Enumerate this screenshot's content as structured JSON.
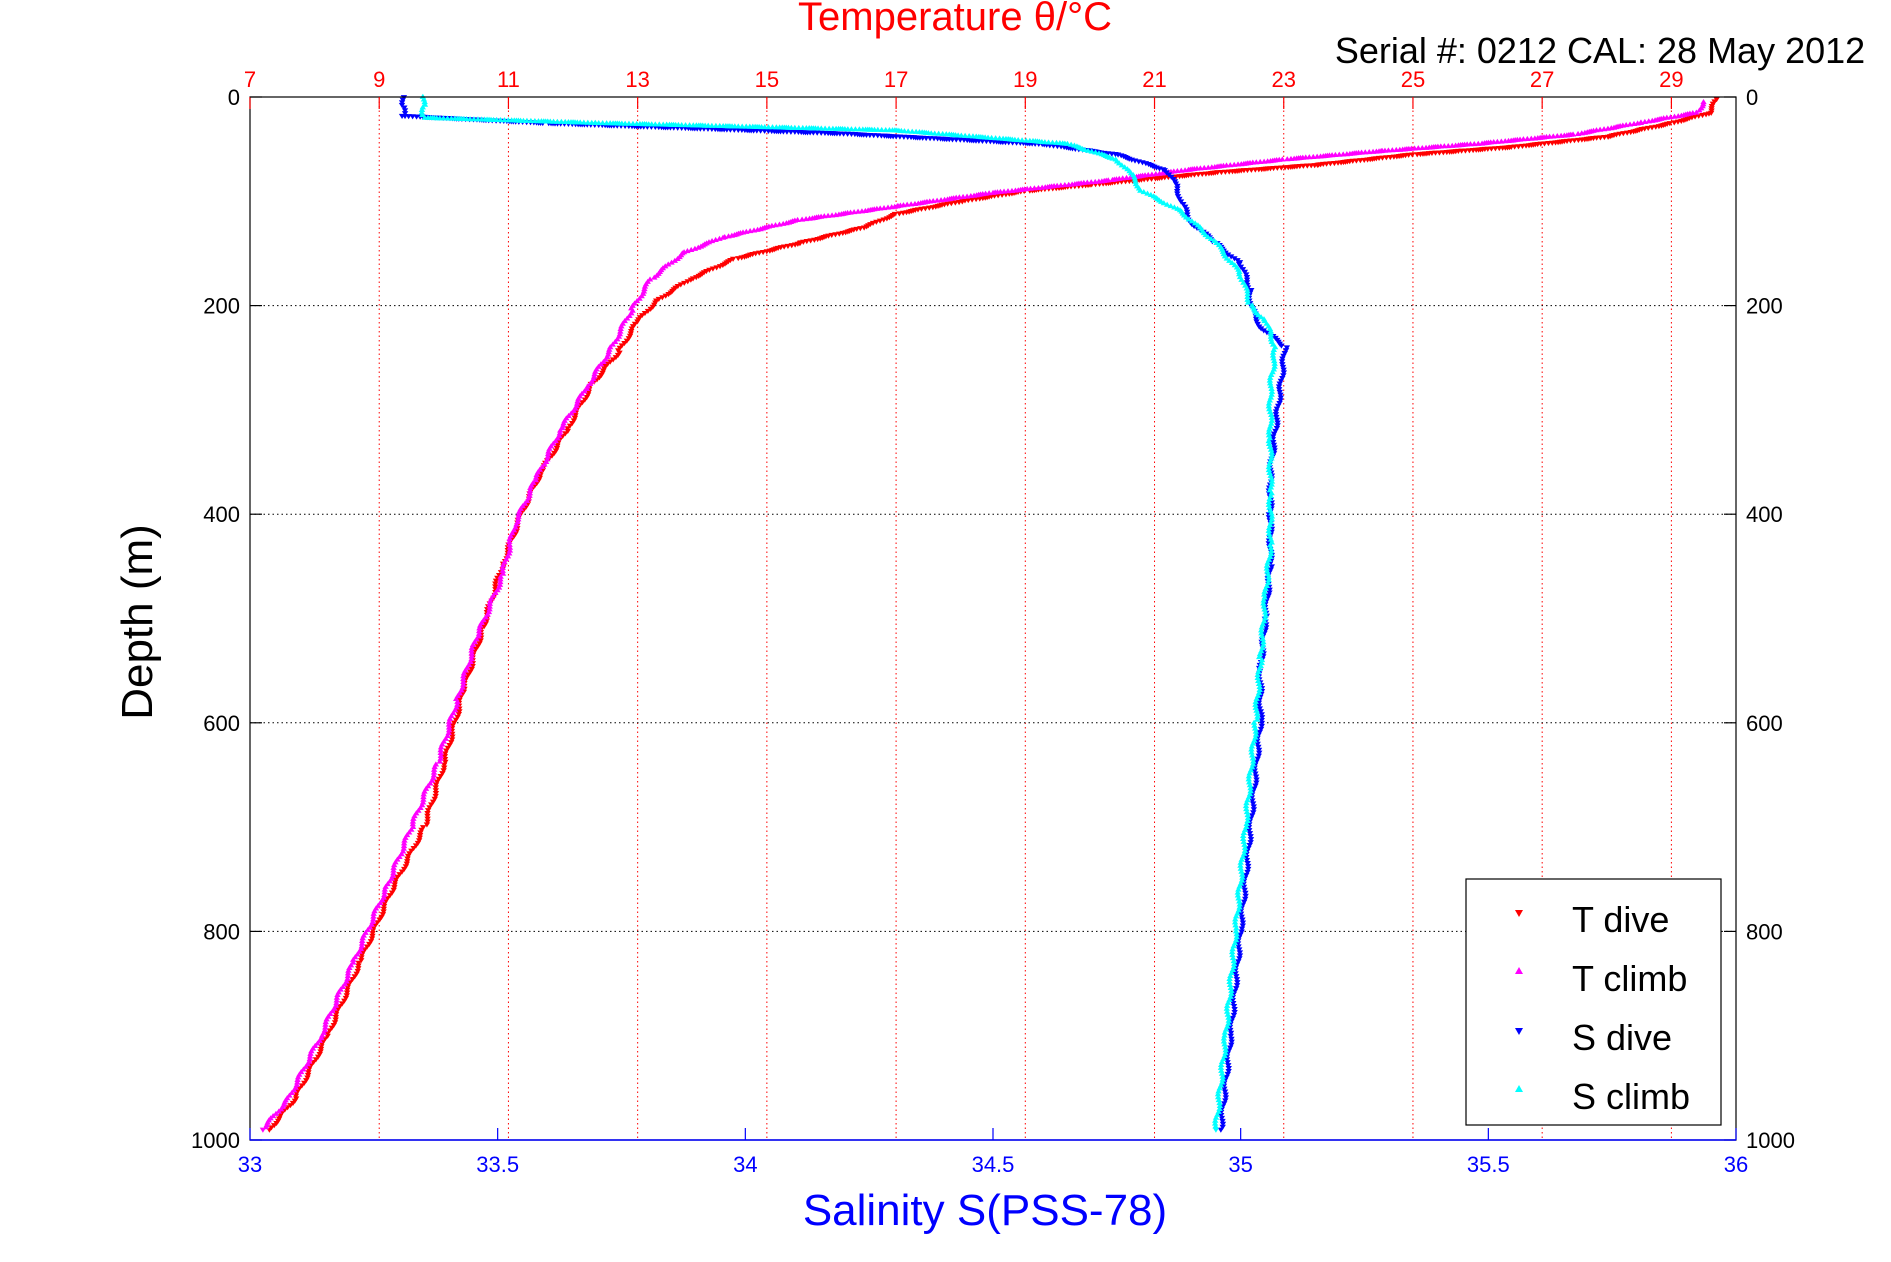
{
  "chart_data": {
    "type": "scatter",
    "title": "Temperature θ/°C",
    "subtitle": "Serial #: 0212  CAL: 28 May 2012",
    "xlabel": "Salinity S(PSS-78)",
    "ylabel": "Depth (m)",
    "colors": {
      "temp_axis": "#ff0000",
      "sal_axis": "#0000ff",
      "t_dive": "#ff0000",
      "t_climb": "#ff00ff",
      "s_dive": "#0000ff",
      "s_climb": "#00ffff"
    },
    "x_temperature": {
      "range": [
        7,
        30
      ],
      "ticks": [
        7,
        9,
        11,
        13,
        15,
        17,
        19,
        21,
        23,
        25,
        27,
        29
      ],
      "tick_labels": [
        "7",
        "9",
        "11",
        "13",
        "15",
        "17",
        "19",
        "21",
        "23",
        "25",
        "27",
        "29"
      ]
    },
    "x_salinity": {
      "range": [
        33,
        36
      ],
      "ticks": [
        33,
        33.5,
        34,
        34.5,
        35,
        35.5,
        36
      ],
      "tick_labels": [
        "33",
        "33.5",
        "34",
        "34.5",
        "35",
        "35.5",
        "36"
      ]
    },
    "y_depth": {
      "range": [
        0,
        1000
      ],
      "reversed": true,
      "ticks": [
        0,
        200,
        400,
        600,
        800,
        1000
      ],
      "left_tick_labels": [
        "0",
        "200",
        "400",
        "600",
        "800",
        "1000"
      ],
      "right_tick_labels": [
        "0",
        "200",
        "400",
        "600",
        "800",
        "1000"
      ]
    },
    "grid": true,
    "legend": {
      "position": "bottom-right",
      "entries": [
        "T dive",
        "T climb",
        "S dive",
        "S climb"
      ]
    },
    "series": [
      {
        "name": "T dive",
        "axis": "temperature",
        "marker": "triangle-down",
        "points": [
          [
            29.7,
            2
          ],
          [
            29.6,
            15
          ],
          [
            29.0,
            25
          ],
          [
            28.0,
            38
          ],
          [
            26.5,
            48
          ],
          [
            25.0,
            55
          ],
          [
            23.5,
            65
          ],
          [
            22.0,
            72
          ],
          [
            21.0,
            78
          ],
          [
            20.0,
            84
          ],
          [
            19.0,
            90
          ],
          [
            18.0,
            100
          ],
          [
            17.0,
            112
          ],
          [
            16.5,
            125
          ],
          [
            15.5,
            140
          ],
          [
            14.5,
            155
          ],
          [
            13.8,
            175
          ],
          [
            13.3,
            195
          ],
          [
            13.0,
            215
          ],
          [
            12.7,
            245
          ],
          [
            12.3,
            275
          ],
          [
            11.9,
            320
          ],
          [
            11.5,
            360
          ],
          [
            11.2,
            400
          ],
          [
            10.9,
            450
          ],
          [
            10.6,
            510
          ],
          [
            10.3,
            570
          ],
          [
            10.0,
            640
          ],
          [
            9.7,
            700
          ],
          [
            9.2,
            760
          ],
          [
            8.7,
            830
          ],
          [
            8.2,
            900
          ],
          [
            7.7,
            960
          ],
          [
            7.3,
            990
          ]
        ]
      },
      {
        "name": "T climb",
        "axis": "temperature",
        "marker": "triangle-up",
        "points": [
          [
            29.5,
            5
          ],
          [
            29.4,
            15
          ],
          [
            28.5,
            25
          ],
          [
            27.5,
            36
          ],
          [
            26.0,
            45
          ],
          [
            24.5,
            52
          ],
          [
            23.0,
            60
          ],
          [
            21.5,
            70
          ],
          [
            20.3,
            80
          ],
          [
            18.5,
            92
          ],
          [
            17.0,
            105
          ],
          [
            15.5,
            118
          ],
          [
            14.3,
            135
          ],
          [
            13.7,
            150
          ],
          [
            13.2,
            175
          ],
          [
            12.9,
            205
          ],
          [
            12.6,
            240
          ],
          [
            12.2,
            280
          ],
          [
            11.8,
            320
          ],
          [
            11.4,
            370
          ],
          [
            11.1,
            410
          ],
          [
            10.9,
            460
          ],
          [
            10.5,
            520
          ],
          [
            10.2,
            580
          ],
          [
            9.9,
            640
          ],
          [
            9.5,
            700
          ],
          [
            9.1,
            760
          ],
          [
            8.6,
            830
          ],
          [
            8.1,
            900
          ],
          [
            7.6,
            960
          ],
          [
            7.2,
            990
          ]
        ]
      },
      {
        "name": "S dive",
        "axis": "salinity",
        "marker": "triangle-down",
        "points": [
          [
            33.31,
            0
          ],
          [
            33.31,
            10
          ],
          [
            33.31,
            18
          ],
          [
            33.6,
            25
          ],
          [
            34.2,
            35
          ],
          [
            34.6,
            45
          ],
          [
            34.75,
            55
          ],
          [
            34.85,
            70
          ],
          [
            34.87,
            85
          ],
          [
            34.88,
            100
          ],
          [
            34.9,
            120
          ],
          [
            34.95,
            140
          ],
          [
            35.0,
            160
          ],
          [
            35.02,
            185
          ],
          [
            35.02,
            200
          ],
          [
            35.04,
            220
          ],
          [
            35.09,
            240
          ],
          [
            35.08,
            280
          ],
          [
            35.07,
            320
          ],
          [
            35.06,
            360
          ],
          [
            35.06,
            400
          ],
          [
            35.06,
            450
          ],
          [
            35.05,
            500
          ],
          [
            35.04,
            550
          ],
          [
            35.04,
            600
          ],
          [
            35.02,
            700
          ],
          [
            35.0,
            800
          ],
          [
            34.98,
            900
          ],
          [
            34.96,
            990
          ]
        ]
      },
      {
        "name": "S climb",
        "axis": "salinity",
        "marker": "triangle-up",
        "points": [
          [
            33.35,
            0
          ],
          [
            33.35,
            10
          ],
          [
            33.35,
            20
          ],
          [
            33.7,
            25
          ],
          [
            34.3,
            32
          ],
          [
            34.65,
            45
          ],
          [
            34.75,
            60
          ],
          [
            34.78,
            75
          ],
          [
            34.8,
            90
          ],
          [
            34.88,
            110
          ],
          [
            34.95,
            140
          ],
          [
            35.0,
            170
          ],
          [
            35.02,
            200
          ],
          [
            35.05,
            215
          ],
          [
            35.07,
            240
          ],
          [
            35.06,
            280
          ],
          [
            35.06,
            330
          ],
          [
            35.06,
            380
          ],
          [
            35.06,
            430
          ],
          [
            35.05,
            480
          ],
          [
            35.04,
            540
          ],
          [
            35.03,
            600
          ],
          [
            35.01,
            700
          ],
          [
            34.99,
            800
          ],
          [
            34.97,
            900
          ],
          [
            34.95,
            990
          ]
        ]
      }
    ]
  }
}
